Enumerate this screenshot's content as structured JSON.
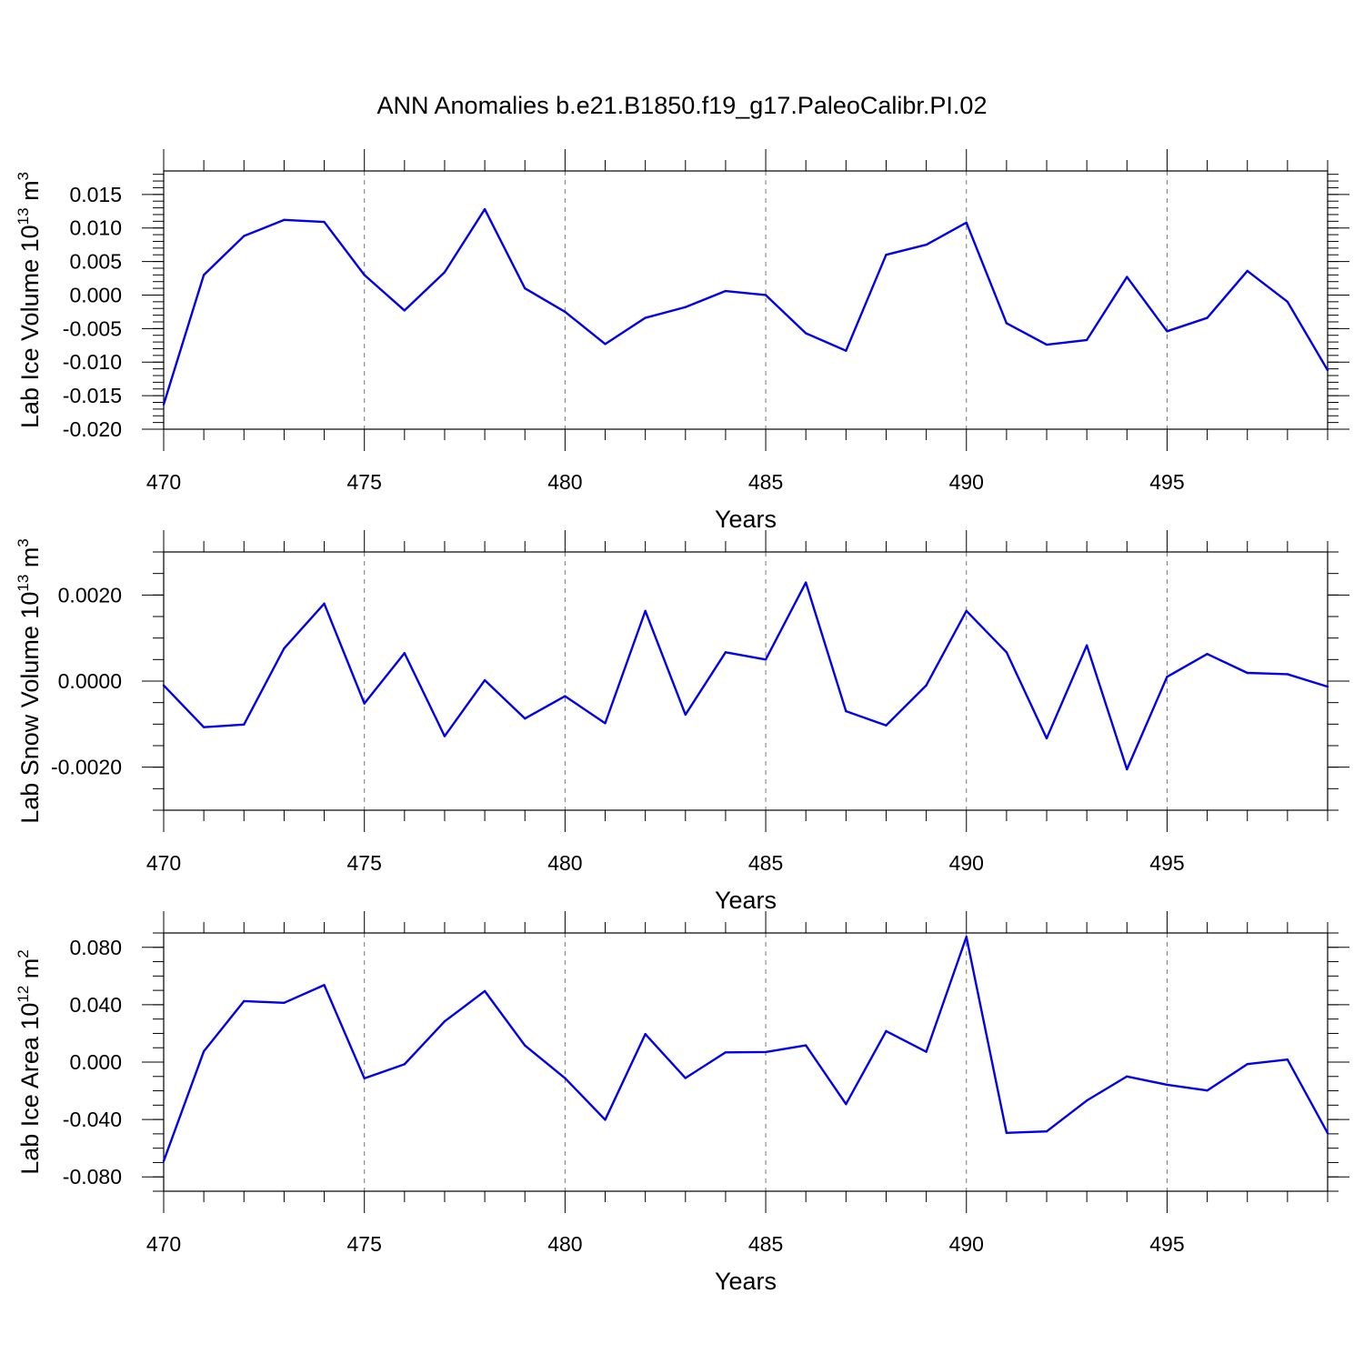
{
  "figure": {
    "title": "ANN Anomalies b.e21.B1850.f19_g17.PaleoCalibr.PI.02"
  },
  "colors": {
    "series": "#0000ee",
    "frame": "#000000",
    "grid": "#777777"
  },
  "chart_data": [
    {
      "type": "line",
      "ylabel": {
        "text": "Lab Ice Volume 10",
        "exp": "13",
        "unit": " m",
        "unit_exp": "3"
      },
      "xlabel": "Years",
      "xlim": [
        470,
        499
      ],
      "ylim": [
        -0.02,
        0.0185
      ],
      "x_ticks": [
        "470",
        "475",
        "480",
        "485",
        "490",
        "495"
      ],
      "y_ticks": [
        "0.015",
        "0.010",
        "0.005",
        "0.000",
        "-0.005",
        "-0.010",
        "-0.015",
        "-0.020"
      ],
      "grid": "x-dashed",
      "x": [
        470,
        471,
        472,
        473,
        474,
        475,
        476,
        477,
        478,
        479,
        480,
        481,
        482,
        483,
        484,
        485,
        486,
        487,
        488,
        489,
        490,
        491,
        492,
        493,
        494,
        495,
        496,
        497,
        498,
        499
      ],
      "values": [
        -0.0163,
        0.003,
        0.0088,
        0.0112,
        0.0109,
        0.003,
        -0.0023,
        0.0034,
        0.0128,
        0.001,
        -0.0025,
        -0.0073,
        -0.0034,
        -0.0018,
        0.0006,
        0.0,
        -0.0057,
        -0.0083,
        0.006,
        0.0075,
        0.0108,
        -0.0042,
        -0.0074,
        -0.0067,
        0.0027,
        -0.0054,
        -0.0034,
        0.0036,
        -0.001,
        -0.0112
      ]
    },
    {
      "type": "line",
      "ylabel": {
        "text": "Lab Snow Volume 10",
        "exp": "13",
        "unit": " m",
        "unit_exp": "3"
      },
      "xlabel": "Years",
      "xlim": [
        470,
        499
      ],
      "ylim": [
        -0.003,
        0.003
      ],
      "x_ticks": [
        "470",
        "475",
        "480",
        "485",
        "490",
        "495"
      ],
      "y_ticks": [
        "0.0020",
        "0.0000",
        "-0.0020"
      ],
      "grid": "x-dashed",
      "x": [
        470,
        471,
        472,
        473,
        474,
        475,
        476,
        477,
        478,
        479,
        480,
        481,
        482,
        483,
        484,
        485,
        486,
        487,
        488,
        489,
        490,
        491,
        492,
        493,
        494,
        495,
        496,
        497,
        498,
        499
      ],
      "values": [
        -0.0001,
        -0.00107,
        -0.00101,
        0.00076,
        0.0018,
        -0.00052,
        0.00065,
        -0.00128,
        2e-05,
        -0.00087,
        -0.00035,
        -0.00098,
        0.00163,
        -0.00078,
        0.00067,
        0.0005,
        0.00229,
        -0.0007,
        -0.00103,
        -0.0001,
        0.00163,
        0.00067,
        -0.00133,
        0.00083,
        -0.00205,
        0.0001,
        0.00063,
        0.00019,
        0.00016,
        -0.00013
      ]
    },
    {
      "type": "line",
      "ylabel": {
        "text": "Lab Ice Area 10",
        "exp": "12",
        "unit": " m",
        "unit_exp": "2"
      },
      "xlabel": "Years",
      "xlim": [
        470,
        499
      ],
      "ylim": [
        -0.09,
        0.09
      ],
      "x_ticks": [
        "470",
        "475",
        "480",
        "485",
        "490",
        "495"
      ],
      "y_ticks": [
        "0.080",
        "0.040",
        "0.000",
        "-0.040",
        "-0.080"
      ],
      "grid": "x-dashed",
      "x": [
        470,
        471,
        472,
        473,
        474,
        475,
        476,
        477,
        478,
        479,
        480,
        481,
        482,
        483,
        484,
        485,
        486,
        487,
        488,
        489,
        490,
        491,
        492,
        493,
        494,
        495,
        496,
        497,
        498,
        499
      ],
      "values": [
        -0.069,
        0.0075,
        0.0425,
        0.0413,
        0.0537,
        -0.0113,
        -0.0015,
        0.0284,
        0.0495,
        0.0116,
        -0.0112,
        -0.0402,
        0.0195,
        -0.0111,
        0.0068,
        0.007,
        0.0117,
        -0.0293,
        0.0216,
        0.0072,
        0.0873,
        -0.0493,
        -0.0483,
        -0.0268,
        -0.01,
        -0.0158,
        -0.0198,
        -0.0014,
        0.0018,
        -0.0495
      ]
    }
  ]
}
